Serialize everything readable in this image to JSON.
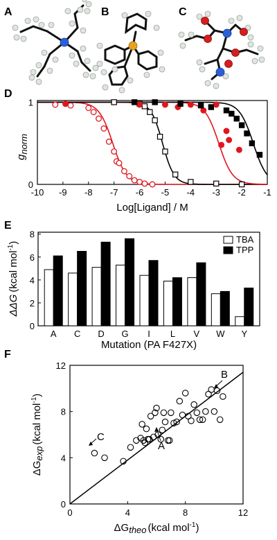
{
  "panels": {
    "A": "A",
    "B": "B",
    "C": "C",
    "D": "D",
    "E": "E",
    "F": "F"
  },
  "chart_data": [
    {
      "panel": "D",
      "type": "scatter",
      "xlabel": "Log[Ligand] / M",
      "ylabel": "g",
      "ylabel_sub": "norm",
      "xlim": [
        -10,
        -1
      ],
      "ylim": [
        0,
        1
      ],
      "xticks": [
        "-10",
        "-9",
        "-8",
        "-7",
        "-6",
        "-5",
        "-4",
        "-3",
        "-2",
        "-1"
      ],
      "yticks": [
        "0",
        "1"
      ],
      "series": [
        {
          "marker": "circle-open",
          "color": "#e0161f",
          "x": [
            -9.3,
            -8.7,
            -8.0,
            -7.8,
            -7.6,
            -7.4,
            -7.2,
            -7.0,
            -6.9,
            -6.8,
            -6.6,
            -6.4,
            -6.2,
            -6.0,
            -5.8,
            -5.5
          ],
          "y": [
            0.97,
            0.96,
            0.93,
            0.88,
            0.8,
            0.68,
            0.52,
            0.4,
            0.28,
            0.26,
            0.16,
            0.1,
            0.05,
            0.03,
            0.01,
            0.0
          ],
          "fit_x0": -7.05,
          "fit_slope": 1.0
        },
        {
          "marker": "square-open",
          "color": "#000000",
          "x": [
            -7.0,
            -6.0,
            -5.8,
            -5.6,
            -5.4,
            -5.2,
            -5.0,
            -4.6,
            -4.0,
            -3.0,
            -2.0
          ],
          "y": [
            1.0,
            0.98,
            0.95,
            0.88,
            0.78,
            0.58,
            0.4,
            0.12,
            0.03,
            0.01,
            0.0
          ],
          "fit_x0": -5.1,
          "fit_slope": 1.2
        },
        {
          "marker": "circle-filled",
          "color": "#e0161f",
          "x": [
            -8.9,
            -6.0,
            -5.0,
            -4.5,
            -4.0,
            -3.5,
            -3.0,
            -2.8,
            -2.6,
            -2.5,
            -2.1
          ],
          "y": [
            0.98,
            0.97,
            0.97,
            0.94,
            0.97,
            0.9,
            0.97,
            0.48,
            0.65,
            0.54,
            0.42
          ],
          "fit_x0": -2.9,
          "fit_slope": 1.0
        },
        {
          "marker": "square-filled",
          "color": "#000000",
          "x": [
            -6.2,
            -5.4,
            -4.4,
            -3.6,
            -3.2,
            -2.6,
            -2.4,
            -2.2,
            -2.0,
            -1.8,
            -1.6,
            -1.3
          ],
          "y": [
            1.0,
            1.0,
            0.98,
            0.96,
            0.94,
            0.9,
            0.86,
            0.8,
            0.72,
            0.62,
            0.5,
            0.36
          ],
          "fit_x0": -1.55,
          "fit_slope": 1.0
        }
      ]
    },
    {
      "panel": "E",
      "type": "bar",
      "xlabel": "Mutation (PA F427X)",
      "ylabel": "ΔΔG",
      "ylabel_unit": "(kcal mol",
      "ylabel_sup": "-1",
      "ylabel_close": ")",
      "ylim": [
        0,
        8
      ],
      "yticks": [
        "0",
        "2",
        "4",
        "6",
        "8"
      ],
      "categories": [
        "A",
        "C",
        "D",
        "G",
        "I",
        "L",
        "V",
        "W",
        "Y"
      ],
      "series": [
        {
          "name": "TBA",
          "color": "#ffffff",
          "values": [
            4.9,
            4.6,
            5.1,
            5.3,
            4.4,
            3.9,
            4.2,
            2.8,
            0.8
          ]
        },
        {
          "name": "TPP",
          "color": "#000000",
          "values": [
            6.1,
            6.5,
            7.3,
            7.6,
            5.7,
            4.2,
            5.5,
            3.0,
            3.3
          ]
        }
      ],
      "legend": "top-right"
    },
    {
      "panel": "F",
      "type": "scatter",
      "xlabel": "ΔG",
      "xlabel_sub": "theo",
      "xlabel_unit": "(kcal mol",
      "xlabel_sup": "-1",
      "ylabel": "ΔG",
      "ylabel_sub": "exp",
      "ylabel_unit": "(kcal mol",
      "ylabel_sup": "-1",
      "label_close": ")",
      "xlim": [
        0,
        12
      ],
      "ylim": [
        0,
        12
      ],
      "xticks": [
        "0",
        "4",
        "8",
        "12"
      ],
      "yticks": [
        "0",
        "4",
        "8",
        "12"
      ],
      "points": {
        "x": [
          1.7,
          2.4,
          3.7,
          4.2,
          4.6,
          4.9,
          5.0,
          5.1,
          5.2,
          5.3,
          5.4,
          5.5,
          5.6,
          5.8,
          5.9,
          6.0,
          6.1,
          6.3,
          6.4,
          6.5,
          6.6,
          6.8,
          6.9,
          7.0,
          7.2,
          7.4,
          7.6,
          7.8,
          8.0,
          8.2,
          8.4,
          8.6,
          8.8,
          9.0,
          9.2,
          9.4,
          9.6,
          9.8,
          10.0,
          10.2,
          10.4,
          10.6
        ],
        "y": [
          4.4,
          4.0,
          3.7,
          4.9,
          5.5,
          5.7,
          6.9,
          5.5,
          5.3,
          6.5,
          5.6,
          5.6,
          7.6,
          5.8,
          7.9,
          8.3,
          6.0,
          5.6,
          6.4,
          7.9,
          7.1,
          5.5,
          5.5,
          7.9,
          7.0,
          7.1,
          8.9,
          7.7,
          9.6,
          7.6,
          7.2,
          8.6,
          7.9,
          7.3,
          7.3,
          8.0,
          9.5,
          9.9,
          8.0,
          9.8,
          7.3,
          9.3
        ]
      },
      "fit_line": {
        "x": [
          0,
          12
        ],
        "y": [
          0,
          11.4
        ]
      },
      "annotations": [
        "A",
        "B",
        "C"
      ]
    }
  ]
}
